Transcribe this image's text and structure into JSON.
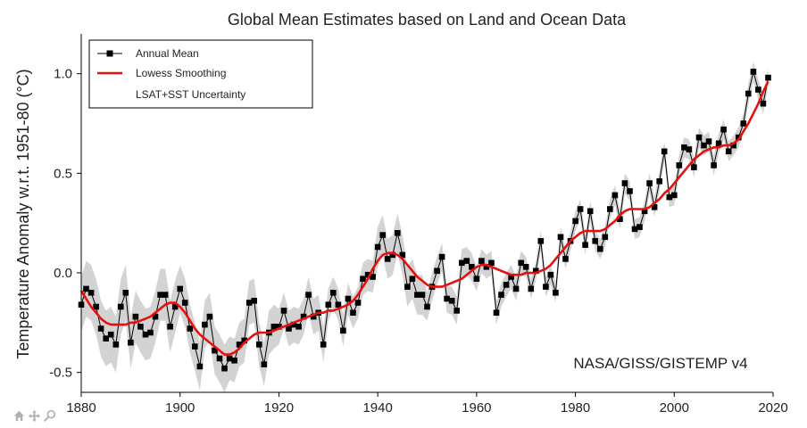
{
  "chart_data": {
    "type": "line",
    "title": "Global Mean Estimates based on Land and Ocean Data",
    "xlabel": "",
    "ylabel": "Temperature Anomaly w.r.t. 1951-80 (°C)",
    "xlim": [
      1880,
      2020
    ],
    "ylim": [
      -0.6,
      1.2
    ],
    "xticks": [
      1880,
      1900,
      1920,
      1940,
      1960,
      1980,
      2000,
      2020
    ],
    "yticks": [
      -0.5,
      0.0,
      0.5,
      1.0
    ],
    "ytick_labels": [
      "-0.5",
      "0.0",
      "0.5",
      "1.0"
    ],
    "legend_position": "top-left",
    "annotation": "NASA/GISS/GISTEMP v4",
    "grid": false,
    "x": [
      1880,
      1881,
      1882,
      1883,
      1884,
      1885,
      1886,
      1887,
      1888,
      1889,
      1890,
      1891,
      1892,
      1893,
      1894,
      1895,
      1896,
      1897,
      1898,
      1899,
      1900,
      1901,
      1902,
      1903,
      1904,
      1905,
      1906,
      1907,
      1908,
      1909,
      1910,
      1911,
      1912,
      1913,
      1914,
      1915,
      1916,
      1917,
      1918,
      1919,
      1920,
      1921,
      1922,
      1923,
      1924,
      1925,
      1926,
      1927,
      1928,
      1929,
      1930,
      1931,
      1932,
      1933,
      1934,
      1935,
      1936,
      1937,
      1938,
      1939,
      1940,
      1941,
      1942,
      1943,
      1944,
      1945,
      1946,
      1947,
      1948,
      1949,
      1950,
      1951,
      1952,
      1953,
      1954,
      1955,
      1956,
      1957,
      1958,
      1959,
      1960,
      1961,
      1962,
      1963,
      1964,
      1965,
      1966,
      1967,
      1968,
      1969,
      1970,
      1971,
      1972,
      1973,
      1974,
      1975,
      1976,
      1977,
      1978,
      1979,
      1980,
      1981,
      1982,
      1983,
      1984,
      1985,
      1986,
      1987,
      1988,
      1989,
      1990,
      1991,
      1992,
      1993,
      1994,
      1995,
      1996,
      1997,
      1998,
      1999,
      2000,
      2001,
      2002,
      2003,
      2004,
      2005,
      2006,
      2007,
      2008,
      2009,
      2010,
      2011,
      2012,
      2013,
      2014,
      2015,
      2016,
      2017,
      2018,
      2019
    ],
    "series": [
      {
        "name": "Annual Mean",
        "color": "#000000",
        "values": [
          -0.16,
          -0.08,
          -0.1,
          -0.17,
          -0.28,
          -0.33,
          -0.31,
          -0.36,
          -0.17,
          -0.1,
          -0.35,
          -0.22,
          -0.27,
          -0.31,
          -0.3,
          -0.22,
          -0.11,
          -0.11,
          -0.27,
          -0.17,
          -0.08,
          -0.15,
          -0.28,
          -0.37,
          -0.47,
          -0.26,
          -0.22,
          -0.39,
          -0.43,
          -0.48,
          -0.43,
          -0.44,
          -0.36,
          -0.34,
          -0.15,
          -0.14,
          -0.36,
          -0.46,
          -0.3,
          -0.27,
          -0.27,
          -0.19,
          -0.28,
          -0.26,
          -0.27,
          -0.22,
          -0.11,
          -0.22,
          -0.2,
          -0.36,
          -0.16,
          -0.1,
          -0.16,
          -0.29,
          -0.13,
          -0.2,
          -0.15,
          -0.03,
          -0.01,
          -0.02,
          0.13,
          0.19,
          0.07,
          0.09,
          0.2,
          0.09,
          -0.07,
          -0.03,
          -0.11,
          -0.11,
          -0.17,
          -0.07,
          0.01,
          0.08,
          -0.13,
          -0.14,
          -0.19,
          0.05,
          0.06,
          0.03,
          -0.03,
          0.06,
          0.03,
          0.05,
          -0.2,
          -0.11,
          -0.06,
          -0.02,
          -0.08,
          0.05,
          0.03,
          -0.08,
          0.01,
          0.16,
          -0.07,
          -0.01,
          -0.1,
          0.18,
          0.07,
          0.16,
          0.26,
          0.32,
          0.14,
          0.31,
          0.16,
          0.12,
          0.18,
          0.32,
          0.39,
          0.27,
          0.45,
          0.41,
          0.22,
          0.23,
          0.31,
          0.45,
          0.33,
          0.46,
          0.61,
          0.38,
          0.39,
          0.54,
          0.63,
          0.62,
          0.53,
          0.68,
          0.64,
          0.66,
          0.54,
          0.65,
          0.72,
          0.61,
          0.64,
          0.68,
          0.75,
          0.9,
          1.01,
          0.92,
          0.85,
          0.98
        ]
      },
      {
        "name": "Lowess Smoothing",
        "color": "#e8100f",
        "values": [
          -0.09,
          -0.13,
          -0.17,
          -0.2,
          -0.23,
          -0.25,
          -0.26,
          -0.26,
          -0.26,
          -0.26,
          -0.25,
          -0.25,
          -0.24,
          -0.23,
          -0.22,
          -0.2,
          -0.18,
          -0.16,
          -0.15,
          -0.15,
          -0.17,
          -0.2,
          -0.24,
          -0.28,
          -0.31,
          -0.33,
          -0.35,
          -0.37,
          -0.39,
          -0.41,
          -0.41,
          -0.4,
          -0.38,
          -0.35,
          -0.33,
          -0.31,
          -0.3,
          -0.3,
          -0.3,
          -0.29,
          -0.28,
          -0.27,
          -0.26,
          -0.25,
          -0.24,
          -0.23,
          -0.22,
          -0.21,
          -0.2,
          -0.2,
          -0.19,
          -0.19,
          -0.18,
          -0.17,
          -0.16,
          -0.14,
          -0.11,
          -0.07,
          -0.03,
          0.02,
          0.06,
          0.09,
          0.1,
          0.1,
          0.09,
          0.07,
          0.04,
          0.01,
          -0.02,
          -0.04,
          -0.06,
          -0.07,
          -0.07,
          -0.07,
          -0.06,
          -0.05,
          -0.04,
          -0.03,
          -0.01,
          0.01,
          0.03,
          0.04,
          0.04,
          0.03,
          0.02,
          0.01,
          0.0,
          -0.01,
          -0.01,
          -0.01,
          0.0,
          0.0,
          0.0,
          0.01,
          0.02,
          0.04,
          0.07,
          0.1,
          0.13,
          0.16,
          0.18,
          0.2,
          0.21,
          0.21,
          0.21,
          0.21,
          0.22,
          0.24,
          0.26,
          0.29,
          0.31,
          0.32,
          0.32,
          0.32,
          0.32,
          0.33,
          0.35,
          0.37,
          0.4,
          0.42,
          0.45,
          0.48,
          0.51,
          0.54,
          0.57,
          0.59,
          0.61,
          0.62,
          0.63,
          0.63,
          0.64,
          0.64,
          0.65,
          0.67,
          0.71,
          0.75,
          0.8,
          0.85,
          0.91,
          0.96
        ]
      },
      {
        "name": "LSAT+SST Uncertainty",
        "color": "#d3d3d3",
        "uncertainty_halfwidth": [
          0.14,
          0.14,
          0.14,
          0.14,
          0.14,
          0.14,
          0.14,
          0.14,
          0.14,
          0.14,
          0.13,
          0.13,
          0.13,
          0.13,
          0.13,
          0.13,
          0.13,
          0.13,
          0.13,
          0.13,
          0.12,
          0.12,
          0.12,
          0.12,
          0.12,
          0.12,
          0.12,
          0.12,
          0.12,
          0.12,
          0.11,
          0.11,
          0.11,
          0.11,
          0.11,
          0.11,
          0.11,
          0.11,
          0.11,
          0.11,
          0.09,
          0.09,
          0.09,
          0.09,
          0.09,
          0.09,
          0.09,
          0.09,
          0.09,
          0.09,
          0.08,
          0.08,
          0.08,
          0.08,
          0.08,
          0.08,
          0.08,
          0.08,
          0.08,
          0.08,
          0.1,
          0.1,
          0.1,
          0.1,
          0.1,
          0.1,
          0.1,
          0.1,
          0.1,
          0.1,
          0.07,
          0.07,
          0.07,
          0.07,
          0.07,
          0.07,
          0.07,
          0.07,
          0.07,
          0.07,
          0.06,
          0.06,
          0.06,
          0.06,
          0.06,
          0.06,
          0.06,
          0.06,
          0.06,
          0.06,
          0.05,
          0.05,
          0.05,
          0.05,
          0.05,
          0.05,
          0.05,
          0.05,
          0.05,
          0.05,
          0.05,
          0.05,
          0.05,
          0.05,
          0.05,
          0.05,
          0.05,
          0.05,
          0.05,
          0.05,
          0.05,
          0.05,
          0.05,
          0.05,
          0.05,
          0.05,
          0.05,
          0.05,
          0.05,
          0.05,
          0.05,
          0.05,
          0.05,
          0.05,
          0.05,
          0.05,
          0.05,
          0.05,
          0.05,
          0.05,
          0.05,
          0.05,
          0.05,
          0.05,
          0.05,
          0.05,
          0.05,
          0.05,
          0.05,
          0.05
        ]
      }
    ]
  },
  "toolbar": {
    "icons": [
      "home-icon",
      "pan-icon",
      "zoom-icon"
    ],
    "color": "#b0b0b0"
  }
}
